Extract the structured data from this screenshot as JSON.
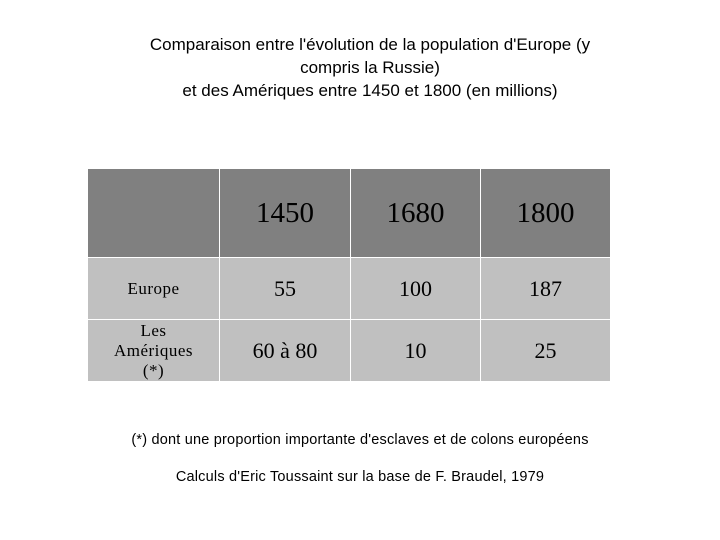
{
  "title": {
    "line1": "Comparaison entre l'évolution de la population d'Europe (y",
    "line2": "compris la Russie)",
    "line3": "et des Amériques entre 1450 et 1800 (en millions)"
  },
  "table": {
    "corner": "",
    "columns": [
      "1450",
      "1680",
      "1800"
    ],
    "rows": [
      {
        "label": "Europe",
        "values": [
          "55",
          "100",
          "187"
        ]
      },
      {
        "label_lines": [
          "Les",
          "Amériques",
          "(*)"
        ],
        "values": [
          "60 à 80",
          "10",
          "25"
        ]
      }
    ]
  },
  "footnote": "(*) dont une proportion importante d'esclaves et de colons européens",
  "source": "Calculs d'Eric Toussaint sur la base de F. Braudel, 1979"
}
